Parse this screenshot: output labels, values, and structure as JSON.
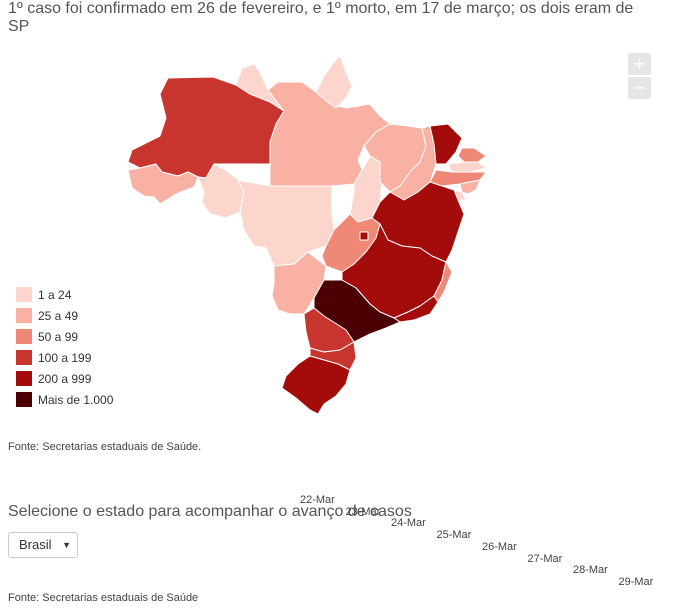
{
  "title": "1º caso foi confirmado em 26 de fevereiro, e 1º morto, em 17 de março; os dois eram de SP",
  "zoom": {
    "in_label": "+",
    "out_label": "−"
  },
  "legend": [
    {
      "label": "1 a 24",
      "color": "#fcd6cc"
    },
    {
      "label": "25 a 49",
      "color": "#f9b1a3"
    },
    {
      "label": "50 a 99",
      "color": "#f08877"
    },
    {
      "label": "100 a 199",
      "color": "#c7352e"
    },
    {
      "label": "200 a 999",
      "color": "#a40b0b"
    },
    {
      "label": "Mais de 1.000",
      "color": "#4c0004"
    }
  ],
  "source_map": "Fonte: Secretarias estaduais de Saúde.",
  "selector": {
    "label": "Selecione o estado para acompanhar o avanço de casos",
    "value": "Brasil"
  },
  "dates": [
    "22-Mar",
    "23-Mar",
    "24-Mar",
    "25-Mar",
    "26-Mar",
    "27-Mar",
    "28-Mar",
    "29-Mar"
  ],
  "source_chart": "Fonte: Secretarias estaduais de Saúde"
}
